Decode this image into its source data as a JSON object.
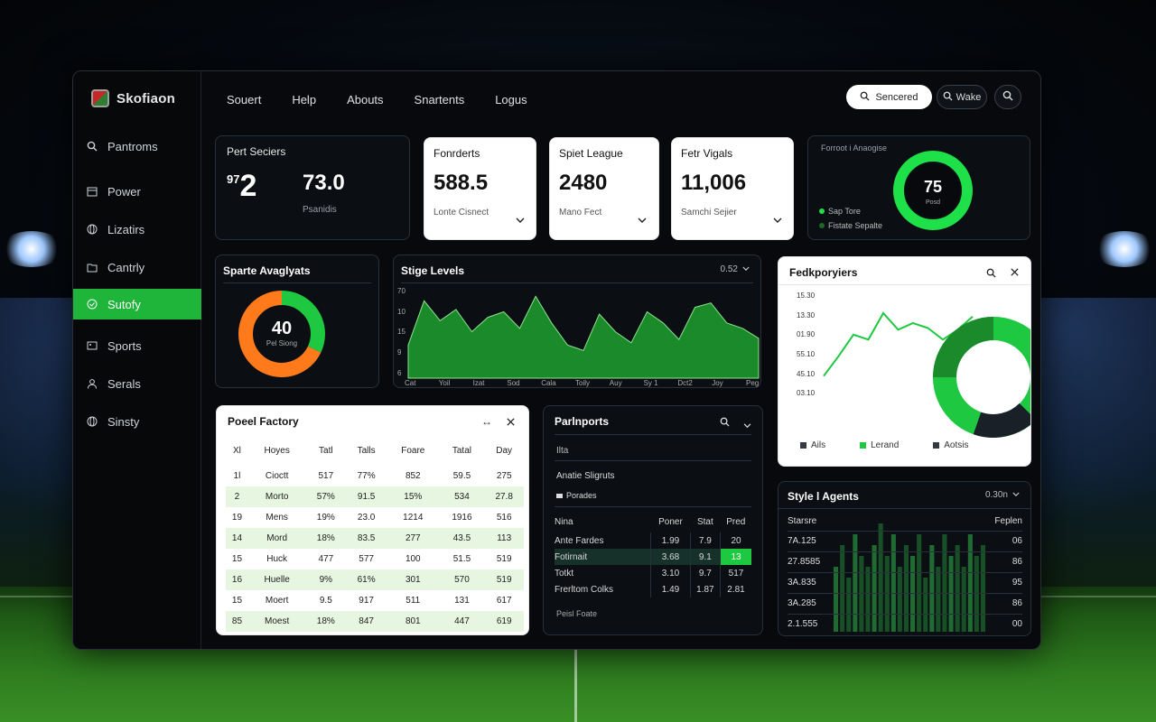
{
  "app": {
    "name": "Skofiaon"
  },
  "topnav": [
    "Souert",
    "Help",
    "Abouts",
    "Snartents",
    "Logus"
  ],
  "header": {
    "search_label": "Sencered",
    "button_label": "Wake"
  },
  "sidebar": [
    {
      "label": "Pantroms",
      "icon": "search-icon"
    },
    {
      "label": "Power",
      "icon": "calendar-icon"
    },
    {
      "label": "Lizatirs",
      "icon": "globe-icon"
    },
    {
      "label": "Cantrly",
      "icon": "folder-icon"
    },
    {
      "label": "Sutofy",
      "icon": "check-circle-icon",
      "active": true
    },
    {
      "label": "Sports",
      "icon": "image-icon"
    },
    {
      "label": "Serals",
      "icon": "user-icon"
    },
    {
      "label": "Sinsty",
      "icon": "globe-icon"
    }
  ],
  "stats": {
    "first": {
      "title": "Pert Seciers",
      "big": "2",
      "sup": "97",
      "value": "73.0",
      "caption": "Psanidis"
    },
    "cards": [
      {
        "title": "Fonrderts",
        "value": "588.5",
        "caption": "Lonte Cisnect"
      },
      {
        "title": "Spiet League",
        "value": "2480",
        "caption": "Mano Fect"
      },
      {
        "title": "Fetr Vigals",
        "value": "11,006",
        "caption": "Samchi Sejier"
      }
    ],
    "ring": {
      "title": "Forroot i Anaogise",
      "value": "75",
      "label": "Posd",
      "pct": 0.75,
      "legend": [
        {
          "label": "Sap Tore",
          "color": "#1ee048"
        },
        {
          "label": "Fistate Sepalte",
          "color": "#1a6a2a"
        }
      ]
    }
  },
  "sports_analysts": {
    "title": "Sparte Avaglyats",
    "value": "40",
    "label": "Pel Siong",
    "orange_pct": 0.68,
    "green_pct": 0.32
  },
  "stige": {
    "title": "Stige Levels",
    "dropdown": "0.52",
    "ylabels": [
      "70",
      "10",
      "15",
      "9",
      "6"
    ],
    "xlabels": [
      "Cat",
      "Yoil",
      "Izat",
      "Sod",
      "Cala",
      "Toily",
      "Auy",
      "Sy 1",
      "Dct2",
      "Joy",
      "Peg"
    ],
    "chart_data": {
      "type": "area",
      "values": [
        3,
        7,
        5.2,
        6.2,
        4.2,
        5.5,
        6,
        4.5,
        7.4,
        5,
        3,
        2.5,
        5.8,
        4.2,
        3.2,
        6,
        5,
        3.5,
        6.4,
        6.8,
        5,
        4.5,
        3.6
      ]
    }
  },
  "poel": {
    "title": "Poeel Factory",
    "columns": [
      "Xl",
      "Hoyes",
      "Tatl",
      "Talls",
      "Foare",
      "Tatal",
      "Day"
    ],
    "rows": [
      [
        "1l",
        "Cioctt",
        "517",
        "77%",
        "852",
        "59.5",
        "275"
      ],
      [
        "2",
        "Morto",
        "57%",
        "91.5",
        "15%",
        "534",
        "27.8"
      ],
      [
        "19",
        "Mens",
        "19%",
        "23.0",
        "1214",
        "1916",
        "516"
      ],
      [
        "14",
        "Mord",
        "18%",
        "83.5",
        "277",
        "43.5",
        "113"
      ],
      [
        "15",
        "Huck",
        "477",
        "577",
        "100",
        "51.5",
        "519"
      ],
      [
        "16",
        "Huelle",
        "9%",
        "61%",
        "301",
        "570",
        "519"
      ],
      [
        "15",
        "Moert",
        "9.5",
        "917",
        "511",
        "131",
        "617"
      ],
      [
        "85",
        "Moest",
        "18%",
        "847",
        "801",
        "447",
        "619"
      ]
    ]
  },
  "parti": {
    "title": "Parlnports",
    "sub1": "Ilta",
    "sub2": "Anatie Sligruts",
    "sub3": "Porades",
    "columns": [
      "Nina",
      "Poner",
      "Stat",
      "Pred"
    ],
    "rows": [
      [
        "Ante Fardes",
        "1.99",
        "7.9",
        "20"
      ],
      [
        "Fotirnait",
        "3.68",
        "9.1",
        "13"
      ],
      [
        "Totkt",
        "3.10",
        "9.7",
        "517"
      ],
      [
        "Frerltom Colks",
        "1.49",
        "1.87",
        "2.81"
      ]
    ],
    "footer": "Peisl Foate"
  },
  "fedro": {
    "title": "Fedkporyiers",
    "ylabels": [
      "15.30",
      "13.30",
      "01.90",
      "55.10",
      "45.10",
      "03.10"
    ],
    "legend": [
      {
        "label": "Ails",
        "color": "#333a40"
      },
      {
        "label": "Lerand",
        "color": "#1ec840"
      },
      {
        "label": "Aotsis",
        "color": "#333a40"
      }
    ],
    "chart_data": {
      "type": "line",
      "values": [
        1,
        2.2,
        3.5,
        3.2,
        4.8,
        3.8,
        4.2,
        3.9,
        3.2,
        3.8,
        4.6
      ]
    }
  },
  "style_agents": {
    "title": "Style l Agents",
    "dropdown": "0.30n",
    "col_left": "Starsre",
    "col_right": "Feplen",
    "rows": [
      [
        "7A.125",
        "06"
      ],
      [
        "27.8585",
        "86"
      ],
      [
        "3A.835",
        "95"
      ],
      [
        "3A.285",
        "86"
      ],
      [
        "2.1.555",
        "00"
      ]
    ],
    "chart_data": {
      "type": "bar",
      "values": [
        6,
        8,
        5,
        9,
        7,
        6,
        8,
        10,
        7,
        9,
        6,
        8,
        7,
        9,
        5,
        8,
        6,
        9,
        7,
        8,
        6,
        9,
        7,
        8
      ]
    }
  }
}
